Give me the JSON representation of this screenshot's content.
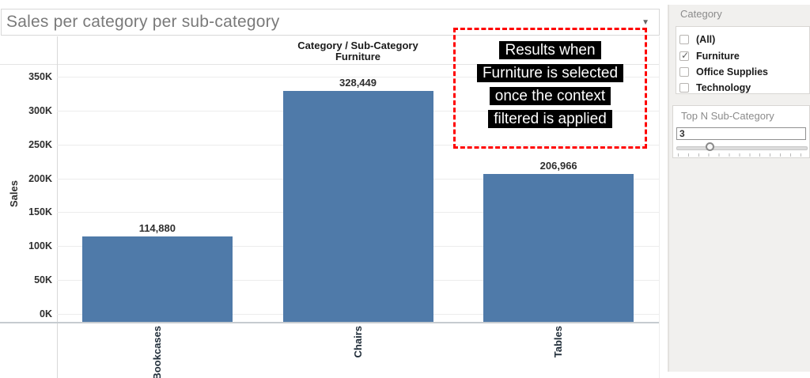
{
  "title": {
    "text": "Sales per category per sub-category",
    "dropdown_icon": "▼"
  },
  "chart_data": {
    "type": "bar",
    "title": "Category / Sub-Category",
    "subtitle": "Furniture",
    "categories": [
      "Bookcases",
      "Chairs",
      "Tables"
    ],
    "values": [
      114880,
      328449,
      206966
    ],
    "value_labels": [
      "114,880",
      "328,449",
      "206,966"
    ],
    "xlabel": "",
    "ylabel": "Sales",
    "ylim": [
      0,
      350000
    ],
    "ytick_step": 50000,
    "ytick_labels": [
      "0K",
      "50K",
      "100K",
      "150K",
      "200K",
      "250K",
      "300K",
      "350K"
    ],
    "grid": true,
    "bar_color": "#4f7aa9"
  },
  "annotation": {
    "lines": [
      "Results when",
      "Furniture is selected",
      "once the context",
      "filtered is applied"
    ],
    "border_color": "#ff0000",
    "text_color": "#ffffff",
    "text_bg": "#000000"
  },
  "sidebar": {
    "category_filter": {
      "title": "Category",
      "items": [
        {
          "label": "(All)",
          "checked": false
        },
        {
          "label": "Furniture",
          "checked": true
        },
        {
          "label": "Office Supplies",
          "checked": false
        },
        {
          "label": "Technology",
          "checked": false
        }
      ],
      "check_glyph": "✓"
    },
    "topn_filter": {
      "title": "Top N Sub-Category",
      "value": "3"
    }
  }
}
